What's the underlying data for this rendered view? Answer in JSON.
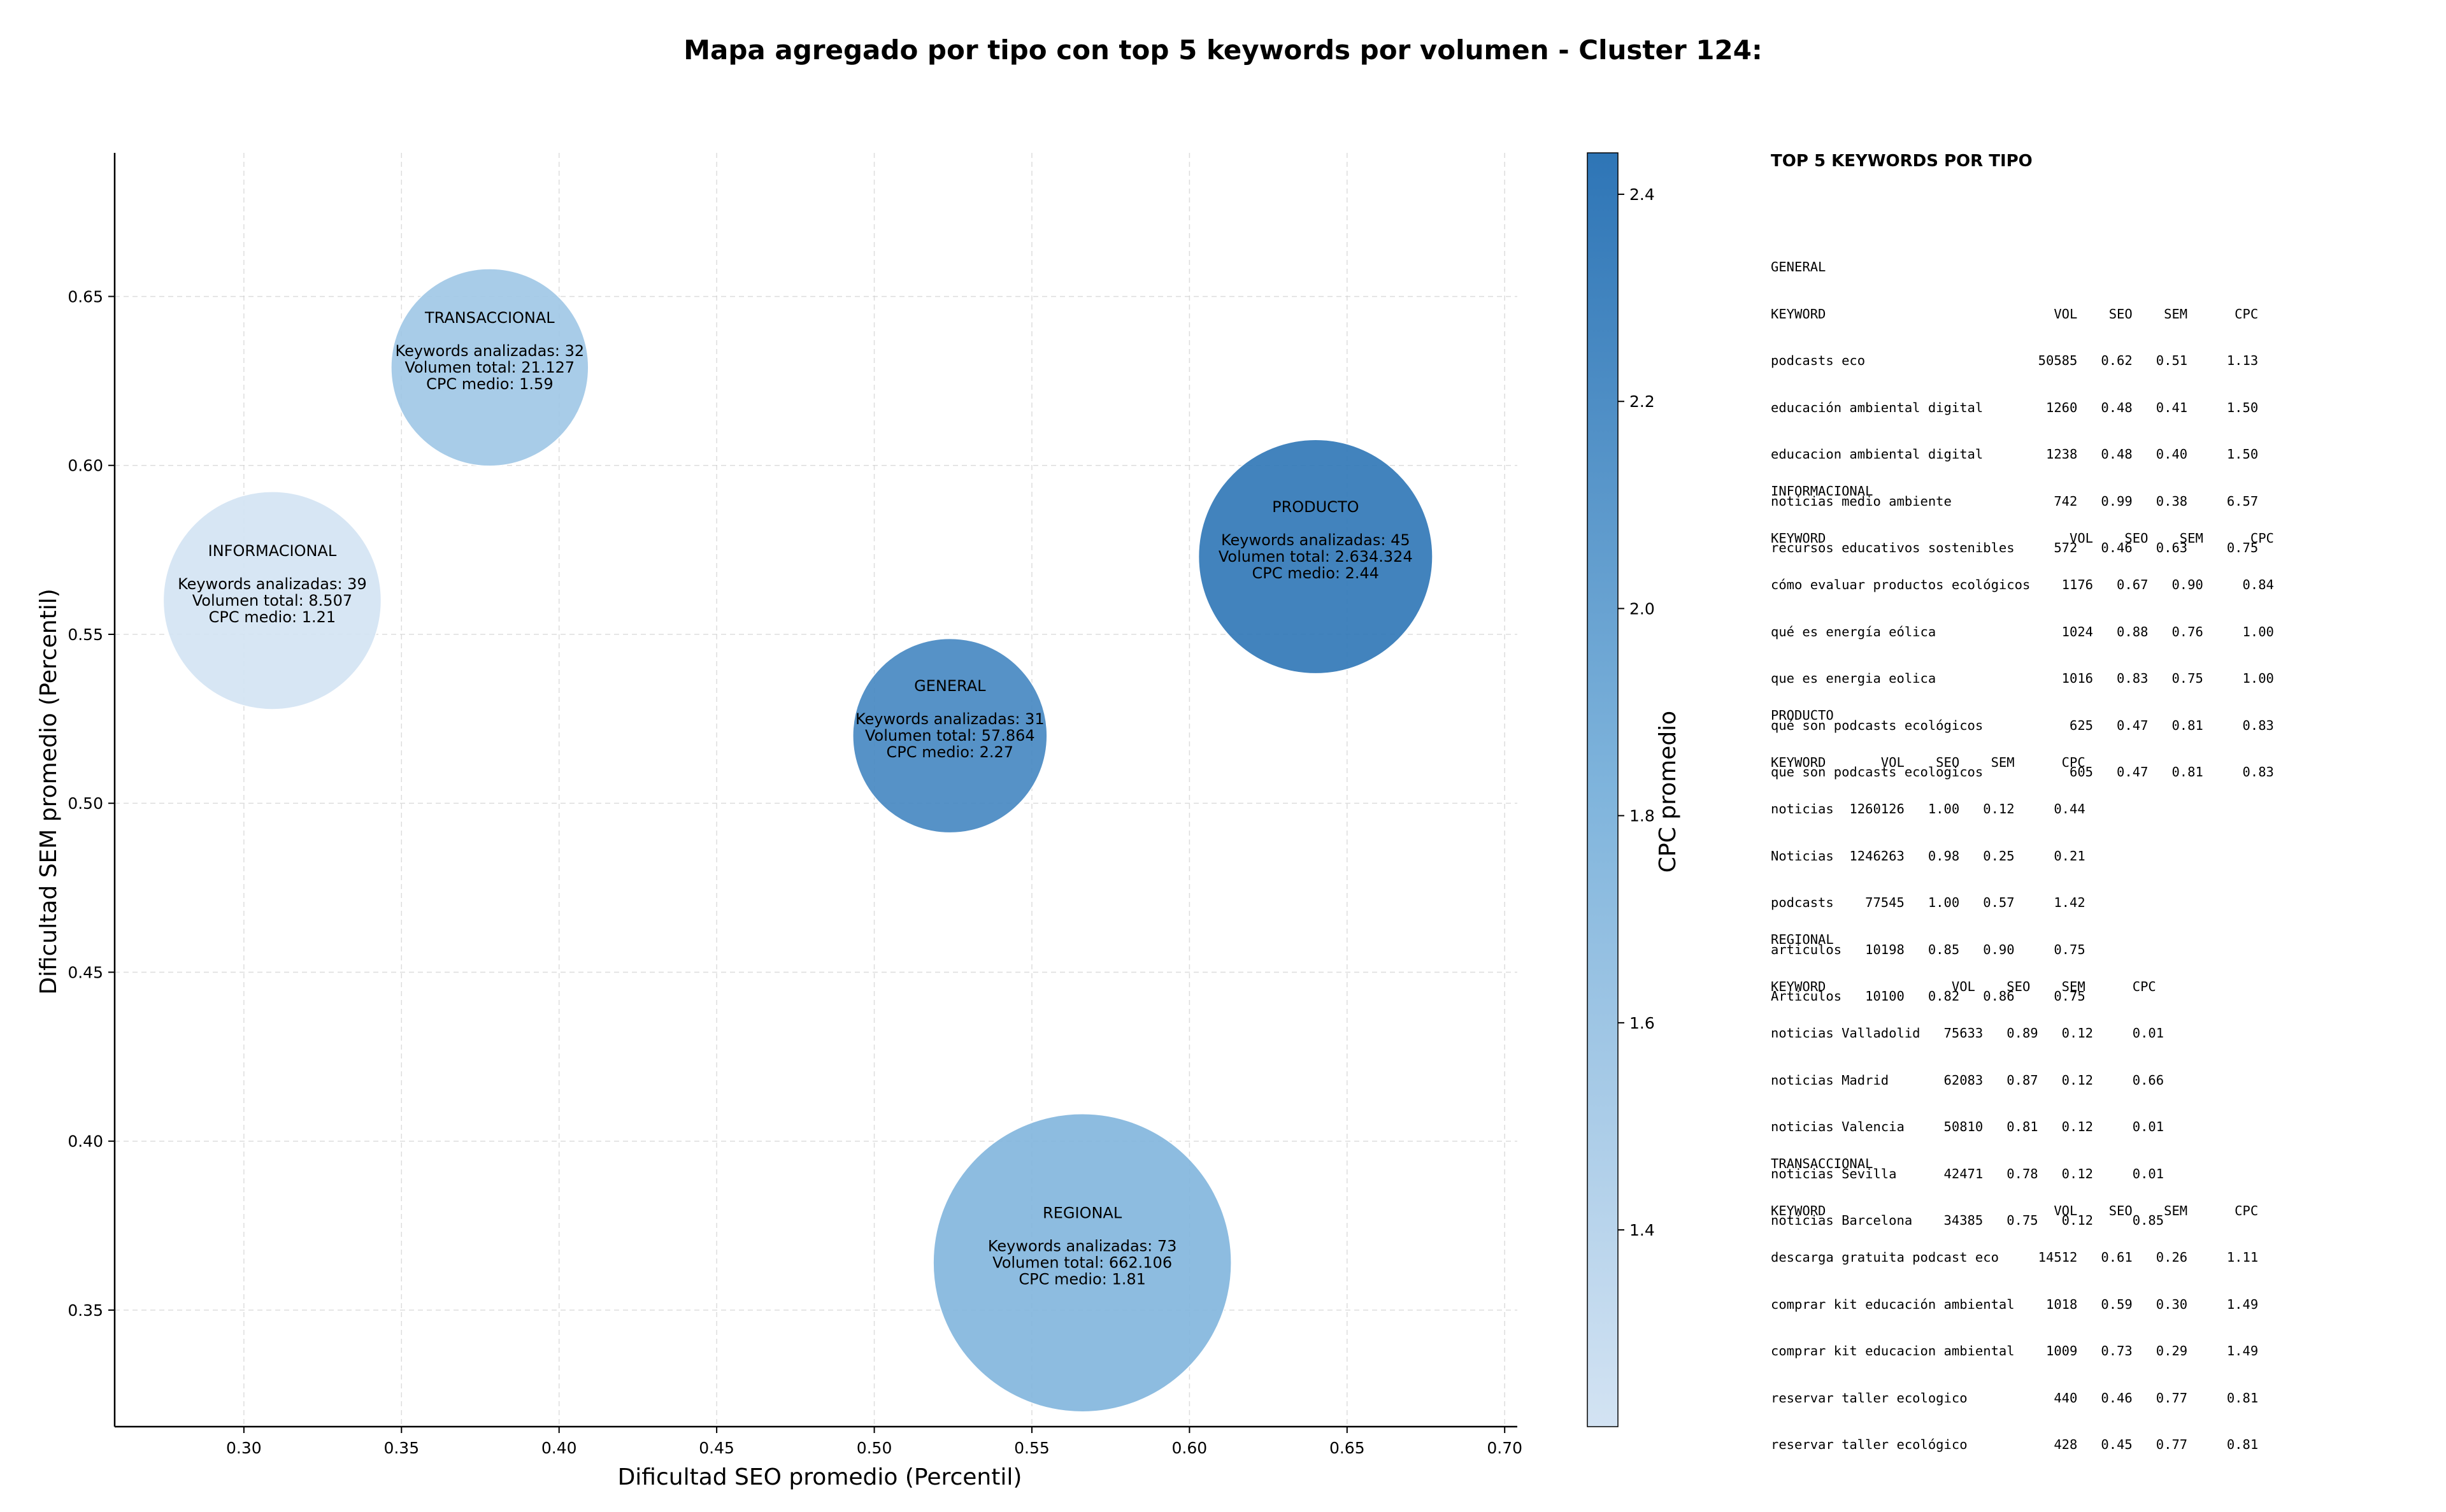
{
  "chart_data": {
    "type": "scatter",
    "title": "Mapa agregado por tipo con top 5 keywords por volumen - Cluster 124:",
    "xlabel": "Dificultad SEO promedio (Percentil)",
    "ylabel": "Dificultad SEM promedio (Percentil)",
    "xlim": [
      0.259,
      0.704
    ],
    "ylim": [
      0.3155,
      0.6925
    ],
    "xticks": [
      "0.30",
      "0.35",
      "0.40",
      "0.45",
      "0.50",
      "0.55",
      "0.60",
      "0.65",
      "0.70"
    ],
    "yticks": [
      "0.35",
      "0.40",
      "0.45",
      "0.50",
      "0.55",
      "0.60",
      "0.65"
    ],
    "grid": true,
    "colorbar": {
      "label": "CPC promedio",
      "range": [
        1.21,
        2.44
      ],
      "ticks": [
        "1.4",
        "1.6",
        "1.8",
        "2.0",
        "2.2",
        "2.4"
      ],
      "color_low": "#d3e3f3",
      "color_high": "#2e75b6"
    },
    "points": [
      {
        "label": "TRANSACCIONAL",
        "x": 0.378,
        "y": 0.629,
        "keywords_line": "Keywords analizadas: 32",
        "volume_line": "Volumen total: 21.127",
        "cpc_line": "CPC medio: 1.59",
        "cpc": 1.59,
        "keywords": 32
      },
      {
        "label": "INFORMACIONAL",
        "x": 0.309,
        "y": 0.56,
        "keywords_line": "Keywords analizadas: 39",
        "volume_line": "Volumen total: 8.507",
        "cpc_line": "CPC medio: 1.21",
        "cpc": 1.21,
        "keywords": 39
      },
      {
        "label": "PRODUCTO",
        "x": 0.64,
        "y": 0.573,
        "keywords_line": "Keywords analizadas: 45",
        "volume_line": "Volumen total: 2.634.324",
        "cpc_line": "CPC medio: 2.44",
        "cpc": 2.44,
        "keywords": 45
      },
      {
        "label": "GENERAL",
        "x": 0.524,
        "y": 0.52,
        "keywords_line": "Keywords analizadas: 31",
        "volume_line": "Volumen total: 57.864",
        "cpc_line": "CPC medio: 2.27",
        "cpc": 2.27,
        "keywords": 31
      },
      {
        "label": "REGIONAL",
        "x": 0.566,
        "y": 0.364,
        "keywords_line": "Keywords analizadas: 73",
        "volume_line": "Volumen total: 662.106",
        "cpc_line": "CPC medio: 1.81",
        "cpc": 1.81,
        "keywords": 73
      }
    ]
  },
  "side_panel": {
    "title": "TOP 5 KEYWORDS POR TIPO",
    "blocks": [
      {
        "name": "GENERAL",
        "lines": [
          "GENERAL",
          "KEYWORD                             VOL    SEO    SEM      CPC",
          "podcasts eco                      50585   0.62   0.51     1.13",
          "educación ambiental digital        1260   0.48   0.41     1.50",
          "educacion ambiental digital        1238   0.48   0.40     1.50",
          "noticias medio ambiente             742   0.99   0.38     6.57",
          "recursos educativos sostenibles     572   0.46   0.63     0.75"
        ]
      },
      {
        "name": "INFORMACIONAL",
        "lines": [
          "INFORMACIONAL",
          "KEYWORD                               VOL    SEO    SEM      CPC",
          "cómo evaluar productos ecológicos    1176   0.67   0.90     0.84",
          "qué es energía eólica                1024   0.88   0.76     1.00",
          "que es energia eolica                1016   0.83   0.75     1.00",
          "qué son podcasts ecológicos           625   0.47   0.81     0.83",
          "que son podcasts ecologicos           605   0.47   0.81     0.83"
        ]
      },
      {
        "name": "PRODUCTO",
        "lines": [
          "PRODUCTO",
          "KEYWORD       VOL    SEO    SEM      CPC",
          "noticias  1260126   1.00   0.12     0.44",
          "Noticias  1246263   0.98   0.25     0.21",
          "podcasts    77545   1.00   0.57     1.42",
          "articulos   10198   0.85   0.90     0.75",
          "Articulos   10100   0.82   0.86     0.75"
        ]
      },
      {
        "name": "REGIONAL",
        "lines": [
          "REGIONAL",
          "KEYWORD                VOL    SEO    SEM      CPC",
          "noticias Valladolid   75633   0.89   0.12     0.01",
          "noticias Madrid       62083   0.87   0.12     0.66",
          "noticias Valencia     50810   0.81   0.12     0.01",
          "noticias Sevilla      42471   0.78   0.12     0.01",
          "noticias Barcelona    34385   0.75   0.12     0.85"
        ]
      },
      {
        "name": "TRANSACCIONAL",
        "lines": [
          "TRANSACCIONAL",
          "KEYWORD                             VOL    SEO    SEM      CPC",
          "descarga gratuita podcast eco     14512   0.61   0.26     1.11",
          "comprar kit educación ambiental    1018   0.59   0.30     1.49",
          "comprar kit educacion ambiental    1009   0.73   0.29     1.49",
          "reservar taller ecologico           440   0.46   0.77     0.81",
          "reservar taller ecológico           428   0.45   0.77     0.81"
        ]
      }
    ]
  }
}
